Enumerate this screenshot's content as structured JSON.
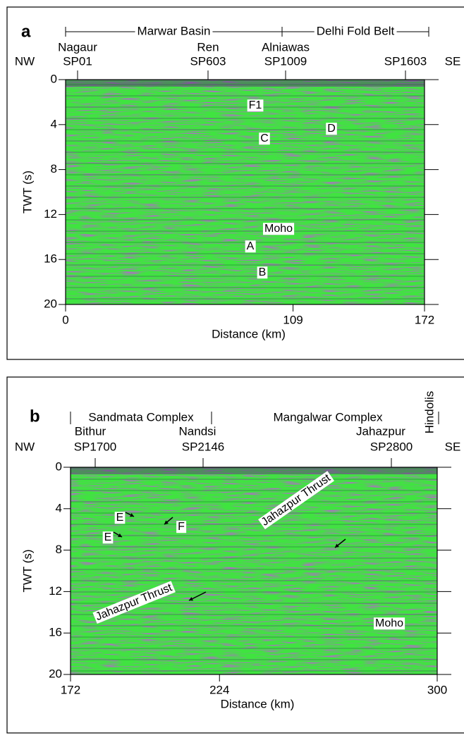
{
  "panels": [
    {
      "label": "a",
      "ylabel": "TWT (s)",
      "xlabel": "Distance (km)",
      "ylim": [
        0,
        20
      ],
      "yticks": [
        0,
        4,
        8,
        12,
        16,
        20
      ],
      "xlim": [
        0,
        172
      ],
      "xticks": [
        0,
        109,
        172
      ],
      "ends": [
        "NW",
        "SE"
      ],
      "provinces": [
        "Marwar Basin",
        "Delhi Fold Belt"
      ],
      "stations": [
        {
          "place": "Nagaur",
          "sp": "SP01"
        },
        {
          "place": "Ren",
          "sp": "SP603"
        },
        {
          "place": "Alniawas",
          "sp": "SP1009"
        },
        {
          "place": null,
          "sp": "SP1603"
        }
      ],
      "annotations": [
        "F1",
        "C",
        "D",
        "Moho",
        "A",
        "B"
      ]
    },
    {
      "label": "b",
      "ylabel": "TWT (s)",
      "xlabel": "Distance (km)",
      "ylim": [
        0,
        20
      ],
      "yticks": [
        0,
        4,
        8,
        12,
        16,
        20
      ],
      "xlim": [
        172,
        300
      ],
      "xticks": [
        172,
        224,
        300
      ],
      "ends": [
        "NW",
        "SE"
      ],
      "provinces": [
        "Sandmata Complex",
        "Mangalwar Complex",
        "Hindolis"
      ],
      "stations": [
        {
          "place": "Bithur",
          "sp": "SP1700"
        },
        {
          "place": "Nandsi",
          "sp": "SP2146"
        },
        {
          "place": "Jahazpur",
          "sp": "SP2800"
        }
      ],
      "annotations": [
        "E",
        "E",
        "F",
        "Jahazpur Thrust",
        "Jahazpur Thrust",
        "Moho"
      ]
    }
  ]
}
